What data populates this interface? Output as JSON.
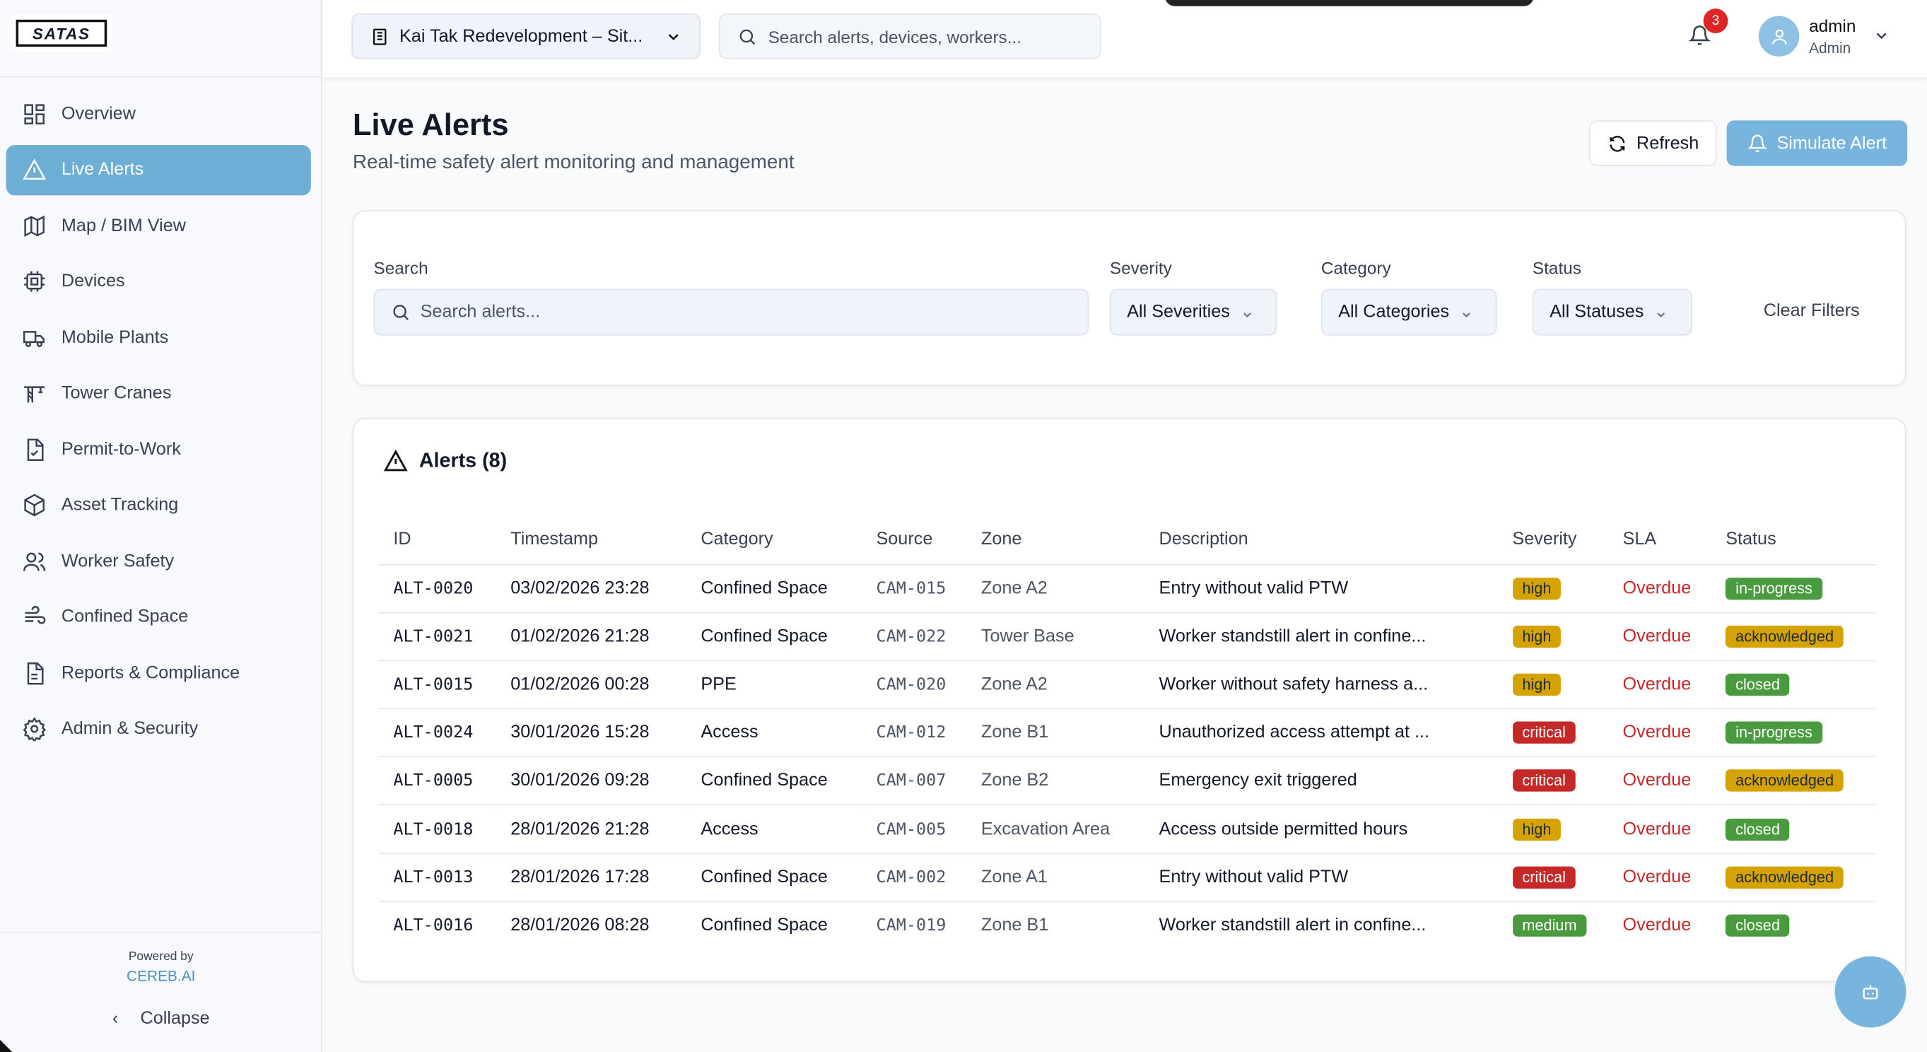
{
  "brand": {
    "logo_text": "SATAS",
    "powered_by": "Powered by",
    "powered_name": "CEREB.AI",
    "collapse": "Collapse"
  },
  "sidebar": {
    "items": [
      {
        "label": "Overview",
        "icon": "grid-icon"
      },
      {
        "label": "Live Alerts",
        "icon": "alert-triangle-icon",
        "active": true
      },
      {
        "label": "Map / BIM View",
        "icon": "map-icon"
      },
      {
        "label": "Devices",
        "icon": "cpu-icon"
      },
      {
        "label": "Mobile Plants",
        "icon": "truck-icon"
      },
      {
        "label": "Tower Cranes",
        "icon": "crane-icon"
      },
      {
        "label": "Permit-to-Work",
        "icon": "file-check-icon"
      },
      {
        "label": "Asset Tracking",
        "icon": "package-icon"
      },
      {
        "label": "Worker Safety",
        "icon": "users-icon"
      },
      {
        "label": "Confined Space",
        "icon": "wind-icon"
      },
      {
        "label": "Reports & Compliance",
        "icon": "file-text-icon"
      },
      {
        "label": "Admin & Security",
        "icon": "settings-icon"
      }
    ]
  },
  "topbar": {
    "site": "Kai Tak Redevelopment – Sit...",
    "search_placeholder": "Search alerts, devices, workers...",
    "notifications": "3",
    "user_name": "admin",
    "user_role": "Admin"
  },
  "page": {
    "title": "Live Alerts",
    "subtitle": "Real-time safety alert monitoring and management",
    "refresh": "Refresh",
    "simulate": "Simulate Alert"
  },
  "filters": {
    "search_label": "Search",
    "search_placeholder": "Search alerts...",
    "severity_label": "Severity",
    "severity_value": "All Severities",
    "category_label": "Category",
    "category_value": "All Categories",
    "status_label": "Status",
    "status_value": "All Statuses",
    "clear": "Clear Filters"
  },
  "alerts": {
    "title": "Alerts (8)",
    "columns": [
      "ID",
      "Timestamp",
      "Category",
      "Source",
      "Zone",
      "Description",
      "Severity",
      "SLA",
      "Status"
    ],
    "rows": [
      [
        "ALT-0020",
        "03/02/2026 23:28",
        "Confined Space",
        "CAM-015",
        "Zone A2",
        "Entry without valid PTW",
        "high",
        "Overdue",
        "in-progress"
      ],
      [
        "ALT-0021",
        "01/02/2026 21:28",
        "Confined Space",
        "CAM-022",
        "Tower Base",
        "Worker standstill alert in confine...",
        "high",
        "Overdue",
        "acknowledged"
      ],
      [
        "ALT-0015",
        "01/02/2026 00:28",
        "PPE",
        "CAM-020",
        "Zone A2",
        "Worker without safety harness a...",
        "high",
        "Overdue",
        "closed"
      ],
      [
        "ALT-0024",
        "30/01/2026 15:28",
        "Access",
        "CAM-012",
        "Zone B1",
        "Unauthorized access attempt at ...",
        "critical",
        "Overdue",
        "in-progress"
      ],
      [
        "ALT-0005",
        "30/01/2026 09:28",
        "Confined Space",
        "CAM-007",
        "Zone B2",
        "Emergency exit triggered",
        "critical",
        "Overdue",
        "acknowledged"
      ],
      [
        "ALT-0018",
        "28/01/2026 21:28",
        "Access",
        "CAM-005",
        "Excavation Area",
        "Access outside permitted hours",
        "high",
        "Overdue",
        "closed"
      ],
      [
        "ALT-0013",
        "28/01/2026 17:28",
        "Confined Space",
        "CAM-002",
        "Zone A1",
        "Entry without valid PTW",
        "critical",
        "Overdue",
        "acknowledged"
      ],
      [
        "ALT-0016",
        "28/01/2026 08:28",
        "Confined Space",
        "CAM-019",
        "Zone B1",
        "Worker standstill alert in confine...",
        "medium",
        "Overdue",
        "closed"
      ]
    ]
  },
  "colors": {
    "accent": "#6eaed5",
    "high": "#d4a300",
    "critical": "#c62828",
    "medium": "#4a9a3f",
    "in-progress": "#4a9a3f",
    "acknowledged": "#d4a300",
    "closed": "#4a9a3f",
    "overdue": "#c62828"
  }
}
